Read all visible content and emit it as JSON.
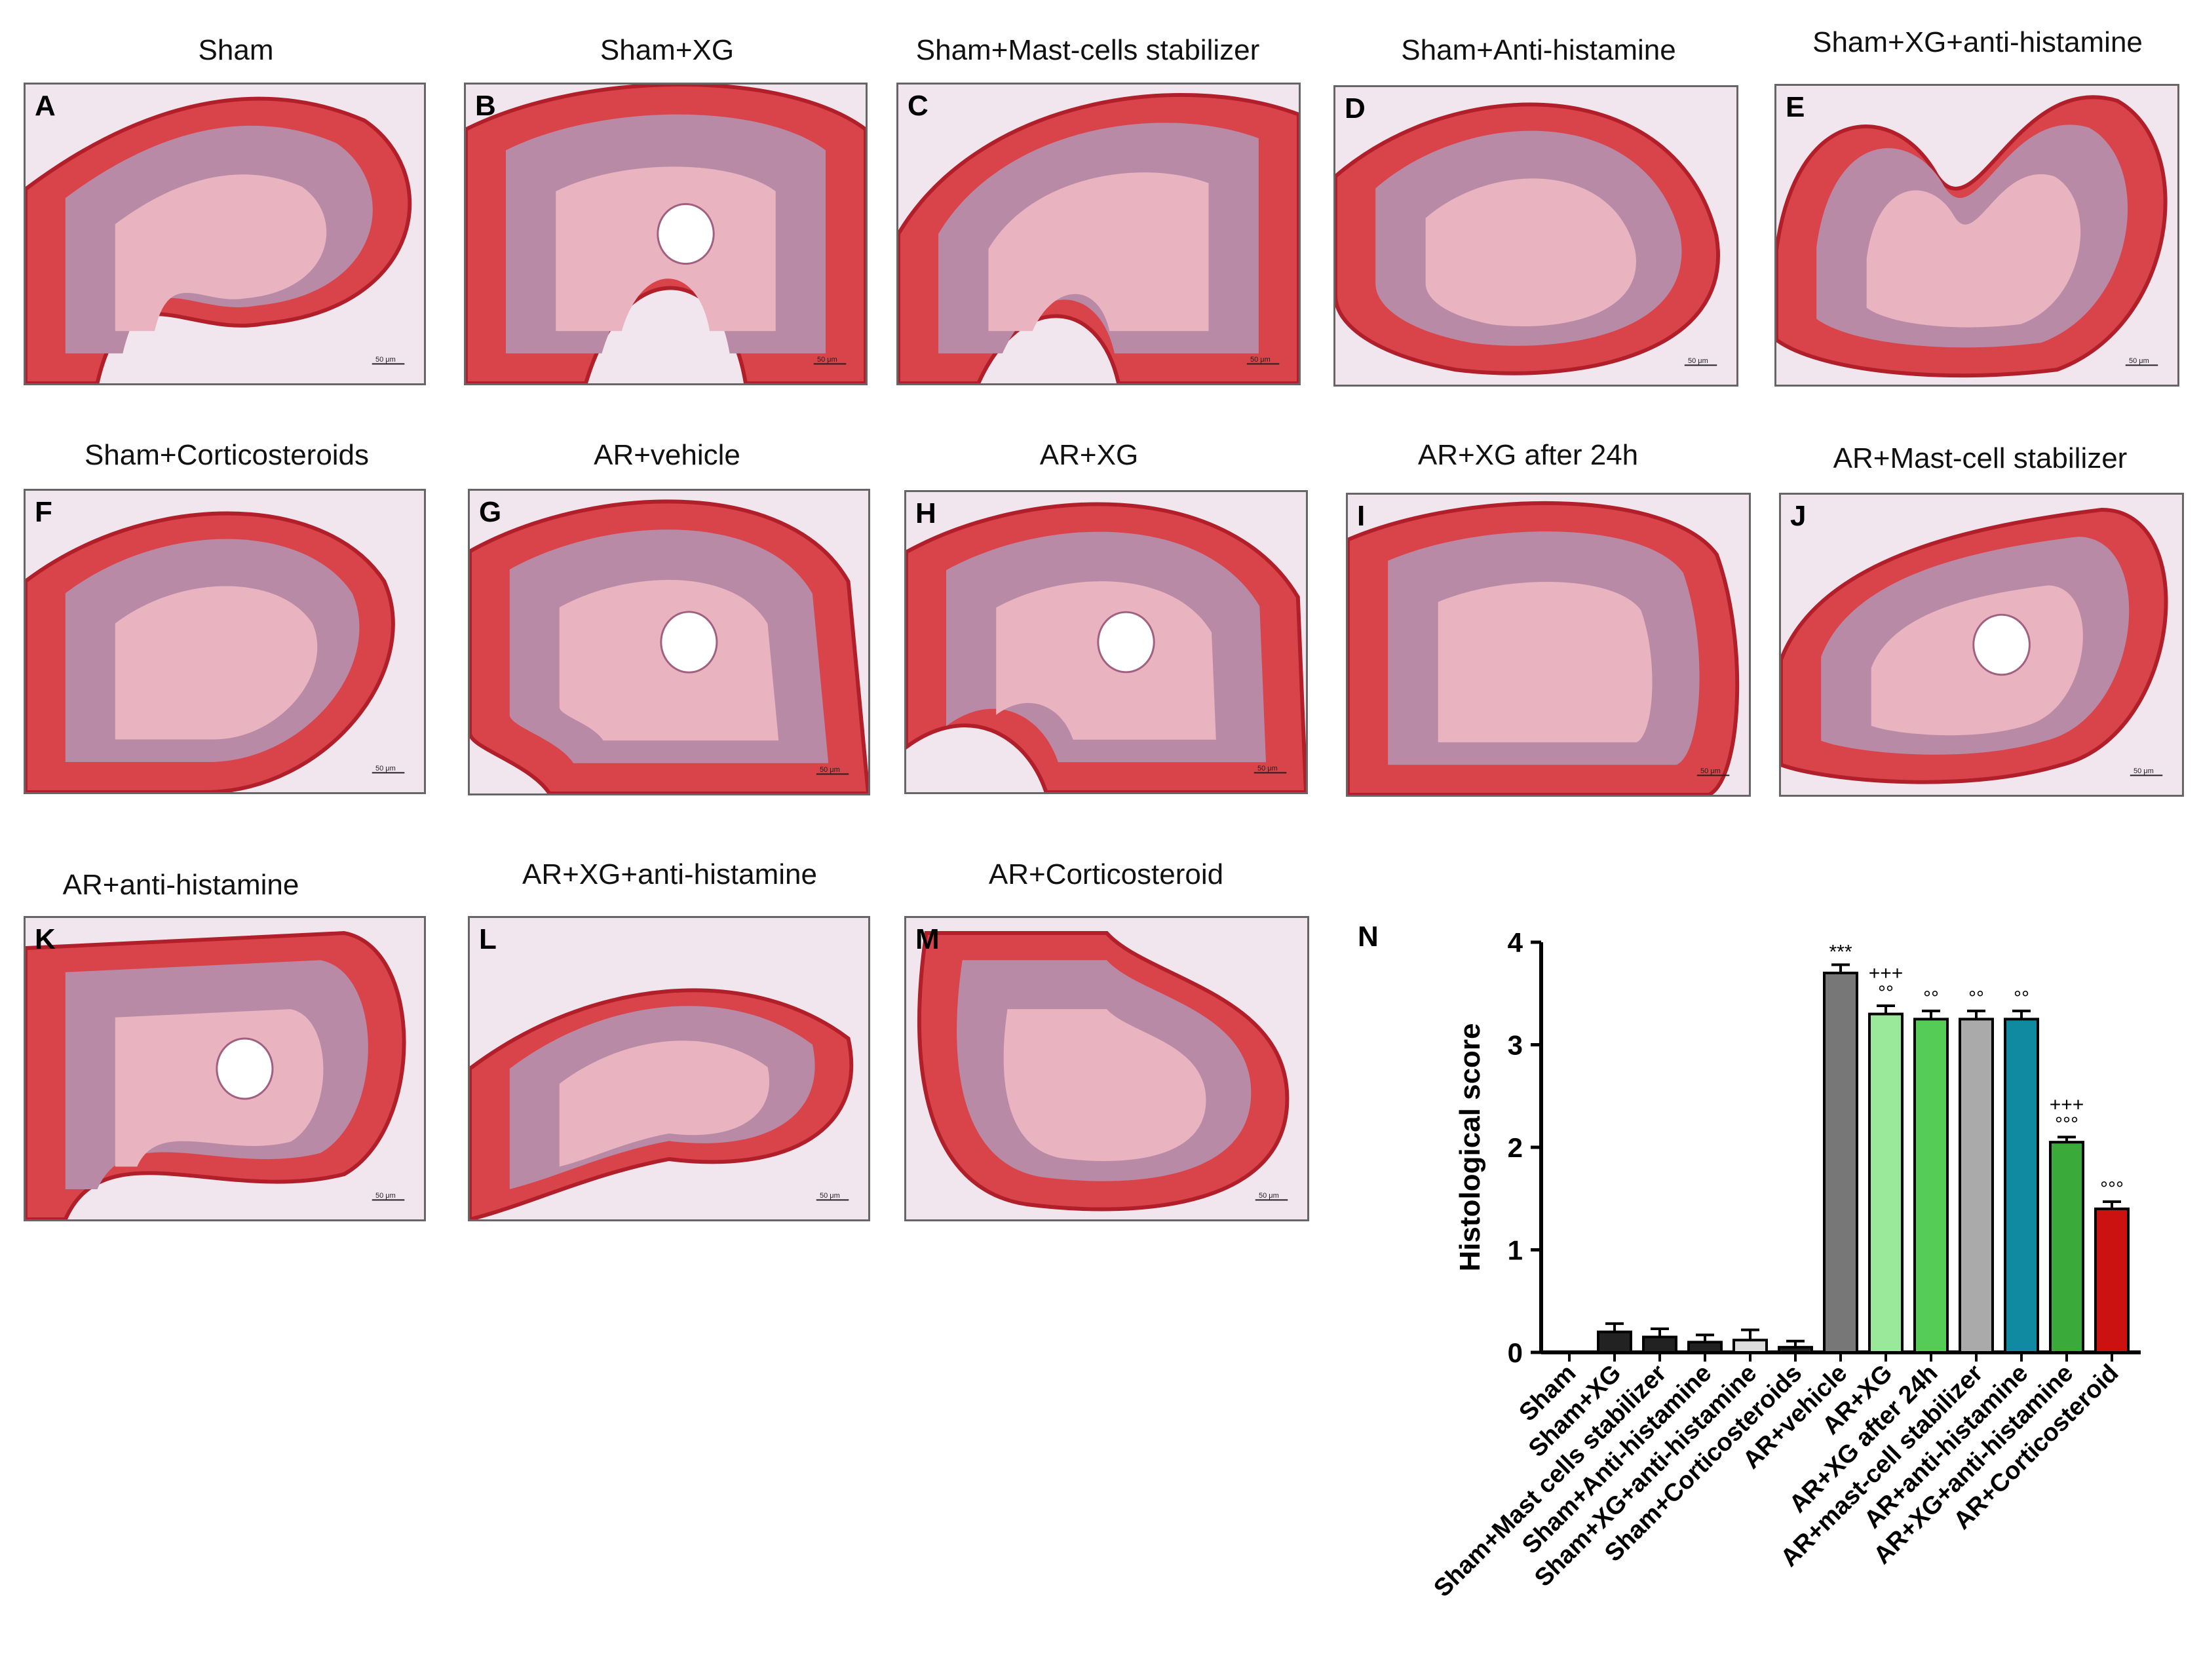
{
  "panels": [
    {
      "label": "A",
      "title": "Sham"
    },
    {
      "label": "B",
      "title": "Sham+XG"
    },
    {
      "label": "C",
      "title": "Sham+Mast-cells stabilizer"
    },
    {
      "label": "D",
      "title": "Sham+Anti-histamine"
    },
    {
      "label": "E",
      "title": "Sham+XG+anti-histamine"
    },
    {
      "label": "F",
      "title": "Sham+Corticosteroids"
    },
    {
      "label": "G",
      "title": "AR+vehicle"
    },
    {
      "label": "H",
      "title": "AR+XG"
    },
    {
      "label": "I",
      "title": "AR+XG after 24h"
    },
    {
      "label": "J",
      "title": "AR+Mast-cell stabilizer"
    },
    {
      "label": "K",
      "title": "AR+anti-histamine"
    },
    {
      "label": "L",
      "title": "AR+XG+anti-histamine"
    },
    {
      "label": "M",
      "title": "AR+Corticosteroid"
    }
  ],
  "scale_bar_text": "50 μm",
  "chart_label": "N",
  "chart_data": {
    "type": "bar",
    "ylabel": "Histological score",
    "ylim": [
      0,
      4
    ],
    "yticks": [
      "0",
      "1",
      "2",
      "3",
      "4"
    ],
    "categories": [
      "Sham",
      "Sham+XG",
      "Sham+Mast cells stabilizer",
      "Sham+Anti-histamine",
      "Sham+XG+anti-histamine",
      "Sham+Corticosteroids",
      "AR+vehicle",
      "AR+XG",
      "AR+XG after 24h",
      "AR+mast-cell stabilizer",
      "AR+anti-histamine",
      "AR+XG+anti-histamine",
      "AR+Corticosteroid"
    ],
    "values": [
      0,
      0.2,
      0.15,
      0.1,
      0.12,
      0.05,
      3.7,
      3.3,
      3.25,
      3.25,
      3.25,
      2.05,
      1.4
    ],
    "errors": [
      0,
      0.08,
      0.08,
      0.07,
      0.1,
      0.06,
      0.08,
      0.08,
      0.08,
      0.08,
      0.08,
      0.05,
      0.07
    ],
    "colors": [
      "#222222",
      "#222222",
      "#222222",
      "#222222",
      "#dddddd",
      "#222222",
      "#777777",
      "#9ae89a",
      "#55cc55",
      "#aaaaaa",
      "#0f8aa0",
      "#3aaa3a",
      "#cc1111"
    ],
    "annotations": [
      {
        "index": 6,
        "lines": [
          "***"
        ]
      },
      {
        "index": 7,
        "lines": [
          "+++",
          "°°"
        ]
      },
      {
        "index": 8,
        "lines": [
          "°°"
        ]
      },
      {
        "index": 9,
        "lines": [
          "°°"
        ]
      },
      {
        "index": 10,
        "lines": [
          "°°"
        ]
      },
      {
        "index": 11,
        "lines": [
          "+++",
          "°°°"
        ]
      },
      {
        "index": 12,
        "lines": [
          "°°°"
        ]
      }
    ]
  }
}
